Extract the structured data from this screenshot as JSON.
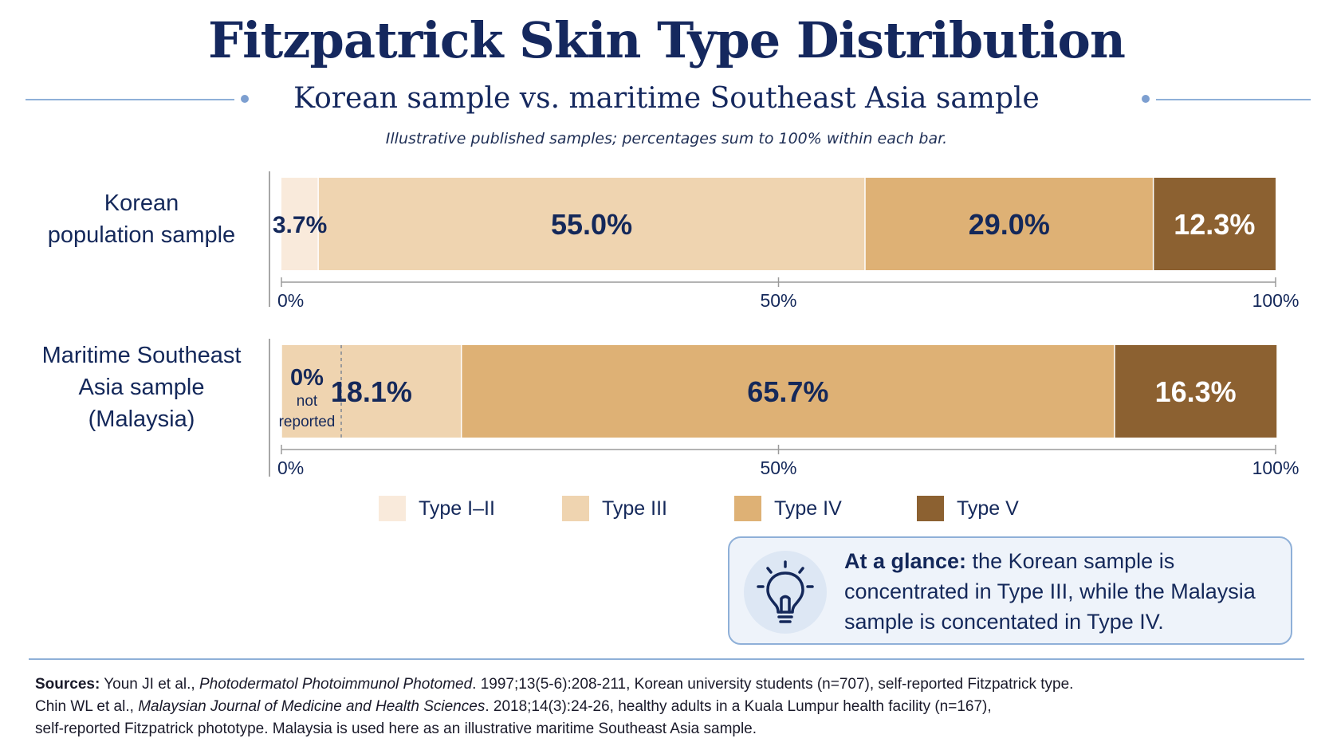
{
  "header": {
    "title": "Fitzpatrick Skin Type Distribution",
    "subtitle": "Korean sample vs. maritime Southeast Asia sample",
    "note": "Illustrative published samples; percentages sum to 100% within each bar."
  },
  "chart_data": {
    "type": "bar",
    "orientation": "horizontal",
    "stacked": true,
    "categories": [
      "Korean population sample",
      "Maritime Southeast Asia sample (Malaysia)"
    ],
    "category_labels": [
      [
        "Korean",
        "population sample"
      ],
      [
        "Maritime Southeast",
        "Asia sample",
        "(Malaysia)"
      ]
    ],
    "series": [
      {
        "name": "Type I–II",
        "color": "#f9eadb",
        "values": [
          3.7,
          0
        ],
        "labels": [
          "3.7%",
          "0%"
        ]
      },
      {
        "name": "Type III",
        "color": "#efd4b0",
        "values": [
          55.0,
          18.1
        ],
        "labels": [
          "55.0%",
          "18.1%"
        ]
      },
      {
        "name": "Type IV",
        "color": "#deb175",
        "values": [
          29.0,
          65.7
        ],
        "labels": [
          "29.0%",
          "65.7%"
        ]
      },
      {
        "name": "Type V",
        "color": "#8c6131",
        "values": [
          12.3,
          16.3
        ],
        "labels": [
          "12.3%",
          "16.3%"
        ]
      }
    ],
    "zero_note": "not reported",
    "xlim": [
      0,
      100
    ],
    "xticks": [
      "0%",
      "50%",
      "100%"
    ],
    "legend_position": "bottom"
  },
  "glance": {
    "lead": "At a glance:",
    "text": " the Korean sample is concentrated in Type III, while the Malaysia sample is concentated in Type IV.",
    "icon": "lightbulb-icon"
  },
  "sources": {
    "label": "Sources:",
    "s1_pre": " Youn JI et al., ",
    "s1_journal": "Photodermatol Photoimmunol Photomed",
    "s1_post": ". 1997;13(5-6):208-211, Korean university students (n=707), self-reported Fitzpatrick type.",
    "s2_pre": "Chin WL et al., ",
    "s2_journal": "Malaysian Journal of Medicine and Health Sciences",
    "s2_post": ". 2018;14(3):24-26, healthy adults in a Kuala Lumpur health facility (n=167),",
    "s3": "self-reported Fitzpatrick phototype. Malaysia is used here as an illustrative maritime Southeast Asia sample."
  }
}
